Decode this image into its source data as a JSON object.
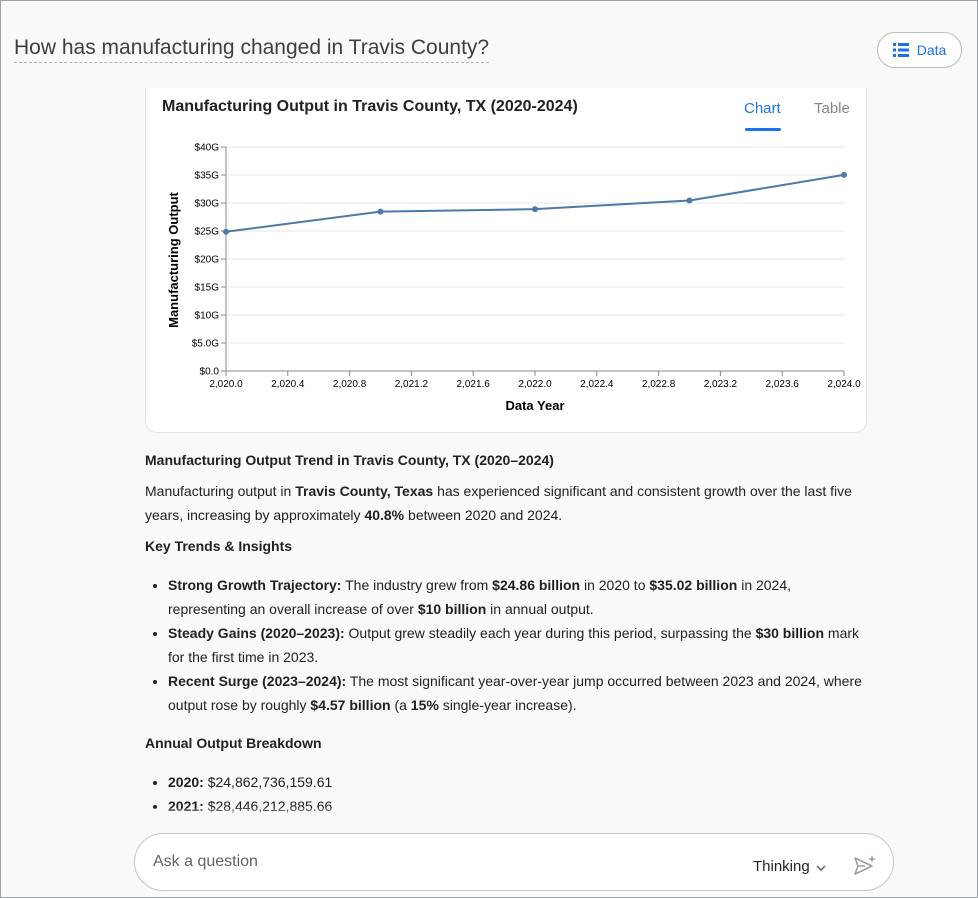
{
  "header": {
    "question": "How has manufacturing changed in Travis County?",
    "data_button_label": "Data"
  },
  "chart_card": {
    "title": "Manufacturing Output in Travis County, TX (2020-2024)",
    "tabs": [
      "Chart",
      "Table"
    ],
    "active_tab": "Chart"
  },
  "chart_data": {
    "type": "line",
    "xlabel": "Data Year",
    "ylabel": "Manufacturing Output",
    "x": [
      2020,
      2021,
      2022,
      2023,
      2024
    ],
    "values": [
      24.86,
      28.45,
      28.9,
      30.45,
      35.02
    ],
    "xlim": [
      2020,
      2024
    ],
    "ylim": [
      0,
      40
    ],
    "x_ticks": [
      "2,020.0",
      "2,020.4",
      "2,020.8",
      "2,021.2",
      "2,021.6",
      "2,022.0",
      "2,022.4",
      "2,022.8",
      "2,023.2",
      "2,023.6",
      "2,024.0"
    ],
    "x_tick_values": [
      2020.0,
      2020.4,
      2020.8,
      2021.2,
      2021.6,
      2022.0,
      2022.4,
      2022.8,
      2023.2,
      2023.6,
      2024.0
    ],
    "y_ticks": [
      "$0.0",
      "$5.0G",
      "$10G",
      "$15G",
      "$20G",
      "$25G",
      "$30G",
      "$35G",
      "$40G"
    ],
    "y_tick_values": [
      0,
      5,
      10,
      15,
      20,
      25,
      30,
      35,
      40
    ],
    "grid": true,
    "line_color": "#4e79a7"
  },
  "article": {
    "heading": "Manufacturing Output Trend in Travis County, TX (2020–2024)",
    "intro": {
      "t1": "Manufacturing output in ",
      "b1": "Travis County, Texas",
      "t2": " has experienced significant and consistent growth over the last five years, increasing by approximately ",
      "b2": "40.8%",
      "t3": " between 2020 and 2024."
    },
    "trends_title": "Key Trends & Insights",
    "trends": [
      {
        "label": "Strong Growth Trajectory:",
        "t1": " The industry grew from ",
        "b1": "$24.86 billion",
        "t2": " in 2020 to ",
        "b2": "$35.02 billion",
        "t3": " in 2024, representing an overall increase of over ",
        "b3": "$10 billion",
        "t4": " in annual output."
      },
      {
        "label": "Steady Gains (2020–2023):",
        "t1": " Output grew steadily each year during this period, surpassing the ",
        "b1": "$30 billion",
        "t2": " mark for the first time in 2023."
      },
      {
        "label": "Recent Surge (2023–2024):",
        "t1": " The most significant year-over-year jump occurred between 2023 and 2024, where output rose by roughly ",
        "b1": "$4.57 billion",
        "t2": " (a ",
        "b2": "15%",
        "t3": " single-year increase)."
      }
    ],
    "breakdown_title": "Annual Output Breakdown",
    "breakdown": [
      {
        "year": "2020:",
        "value": " $24,862,736,159.61"
      },
      {
        "year": "2021:",
        "value": " $28,446,212,885.66"
      }
    ]
  },
  "ask": {
    "placeholder": "Ask a question",
    "mode_label": "Thinking"
  },
  "colors": {
    "accent": "#1a73e8",
    "line": "#4e79a7"
  },
  "icons": {
    "data_button": "list-icon",
    "mode": "chevron-down-icon",
    "send": "send-sparkle-icon"
  }
}
